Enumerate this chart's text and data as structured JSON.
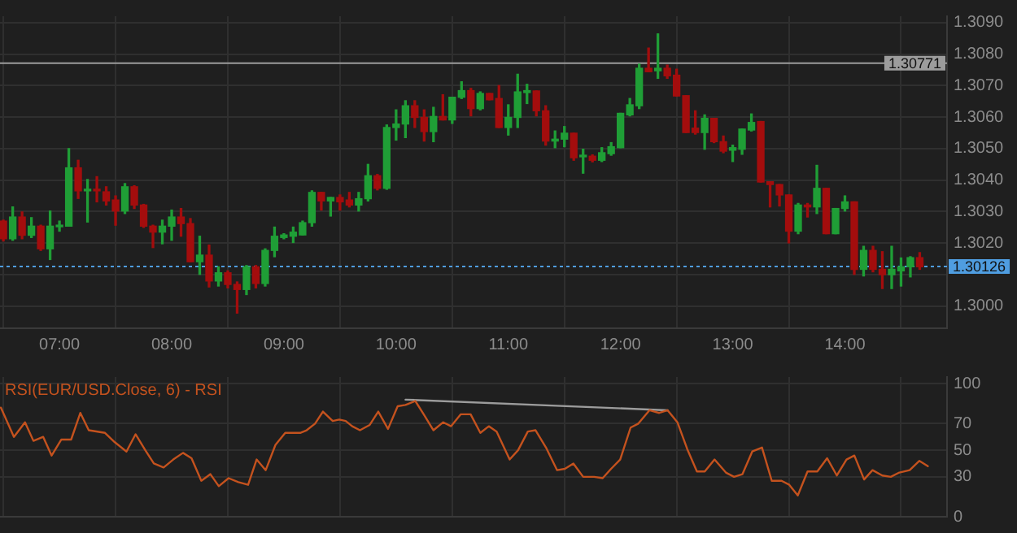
{
  "chart_data": [
    {
      "type": "candlestick",
      "colors": [
        "#a30d0d",
        "#1f9e36",
        "#a30d0d",
        "#1f9e36",
        "#a30d0d",
        "#1f9e36",
        "#1f9e36",
        "#1f9e36",
        "#a30d0d",
        "#1f9e36",
        "#a30d0d",
        "#a30d0d",
        "#a30d0d",
        "#1f9e36",
        "#a30d0d",
        "#a30d0d",
        "#a30d0d",
        "#1f9e36",
        "#1f9e36",
        "#a30d0d",
        "#a30d0d",
        "#1f9e36",
        "#a30d0d",
        "#1f9e36",
        "#a30d0d",
        "#a30d0d",
        "#1f9e36",
        "#a30d0d",
        "#1f9e36",
        "#1f9e36",
        "#1f9e36",
        "#1f9e36",
        "#1f9e36",
        "#1f9e36",
        "#a30d0d",
        "#1f9e36",
        "#a30d0d",
        "#a30d0d",
        "#1f9e36",
        "#1f9e36",
        "#a30d0d",
        "#1f9e36",
        "#1f9e36",
        "#1f9e36",
        "#a30d0d",
        "#a30d0d",
        "#1f9e36",
        "#a30d0d",
        "#1f9e36",
        "#1f9e36",
        "#a30d0d",
        "#1f9e36",
        "#a30d0d",
        "#a30d0d",
        "#1f9e36",
        "#1f9e36",
        "#1f9e36",
        "#a30d0d",
        "#a30d0d",
        "#1f9e36",
        "#1f9e36",
        "#a30d0d",
        "#1f9e36",
        "#a30d0d",
        "#1f9e36",
        "#1f9e36",
        "#1f9e36",
        "#1f9e36",
        "#1f9e36",
        "#a30d0d",
        "#1f9e36",
        "#a30d0d",
        "#a30d0d",
        "#a30d0d",
        "#a30d0d",
        "#1f9e36",
        "#a30d0d",
        "#a30d0d",
        "#1f9e36",
        "#1f9e36",
        "#1f9e36",
        "#a30d0d",
        "#a30d0d",
        "#a30d0d",
        "#a30d0d",
        "#1f9e36",
        "#a30d0d",
        "#1f9e36",
        "#a30d0d",
        "#1f9e36",
        "#1f9e36",
        "#a30d0d",
        "#1f9e36",
        "#a30d0d",
        "#a30d0d",
        "#1f9e36",
        "#1f9e36",
        "#1f9e36",
        "#a30d0d"
      ],
      "x": [
        6.5,
        6.5833,
        6.6667,
        6.75,
        6.8333,
        6.9167,
        7,
        7.0833,
        7.1667,
        7.25,
        7.3333,
        7.4167,
        7.5,
        7.5833,
        7.6667,
        7.75,
        7.8333,
        7.9167,
        8,
        8.0833,
        8.1667,
        8.25,
        8.3333,
        8.4167,
        8.5,
        8.5833,
        8.6667,
        8.75,
        8.8333,
        8.9167,
        9,
        9.0833,
        9.1667,
        9.25,
        9.3333,
        9.4167,
        9.5,
        9.5833,
        9.6667,
        9.75,
        9.8333,
        9.9167,
        10,
        10.0833,
        10.1667,
        10.25,
        10.3333,
        10.4167,
        10.5,
        10.5833,
        10.6667,
        10.75,
        10.8333,
        10.9167,
        11,
        11.0833,
        11.1667,
        11.25,
        11.3333,
        11.4167,
        11.5,
        11.5833,
        11.6667,
        11.75,
        11.8333,
        11.9167,
        12,
        12.0833,
        12.1667,
        12.25,
        12.3333,
        12.4167,
        12.5,
        12.5833,
        12.6667,
        12.75,
        12.8333,
        12.9167,
        13,
        13.0833,
        13.1667,
        13.25,
        13.3333,
        13.4167,
        13.5,
        13.5833,
        13.6667,
        13.75,
        13.8333,
        13.9167,
        14,
        14.0833,
        14.1667,
        14.25,
        14.3333,
        14.4167,
        14.5,
        14.5833,
        14.6667
      ],
      "ohlc": [
        [
          1.3027,
          1.30273,
          1.30207,
          1.30214
        ],
        [
          1.30214,
          1.30315,
          1.30209,
          1.30283
        ],
        [
          1.30283,
          1.30299,
          1.30214,
          1.30225
        ],
        [
          1.30225,
          1.30281,
          1.30218,
          1.30254
        ],
        [
          1.30254,
          1.30257,
          1.30177,
          1.30182
        ],
        [
          1.30182,
          1.30302,
          1.30148,
          1.30254
        ],
        [
          1.30252,
          1.3027,
          1.30238,
          1.30255
        ],
        [
          1.30254,
          1.305,
          1.30254,
          1.30439
        ],
        [
          1.30439,
          1.30463,
          1.30342,
          1.30366
        ],
        [
          1.30366,
          1.30402,
          1.30267,
          1.30369
        ],
        [
          1.30369,
          1.30411,
          1.30331,
          1.30366
        ],
        [
          1.30363,
          1.30379,
          1.30321,
          1.30334
        ],
        [
          1.30337,
          1.3035,
          1.30257,
          1.30302
        ],
        [
          1.30302,
          1.30389,
          1.30294,
          1.30379
        ],
        [
          1.30379,
          1.30382,
          1.3031,
          1.30321
        ],
        [
          1.30321,
          1.30323,
          1.3025,
          1.30254
        ],
        [
          1.30254,
          1.30257,
          1.30186,
          1.30235
        ],
        [
          1.30235,
          1.30273,
          1.30198,
          1.30254
        ],
        [
          1.30254,
          1.30305,
          1.30209,
          1.30283
        ],
        [
          1.30283,
          1.3031,
          1.30222,
          1.30262
        ],
        [
          1.30262,
          1.30278,
          1.30141,
          1.30141
        ],
        [
          1.30141,
          1.30222,
          1.30101,
          1.30162
        ],
        [
          1.30162,
          1.30194,
          1.30061,
          1.3008
        ],
        [
          1.3008,
          1.30125,
          1.30064,
          1.30106
        ],
        [
          1.30106,
          1.30112,
          1.30058,
          1.30069
        ],
        [
          1.30069,
          1.30077,
          1.29978,
          1.30053
        ],
        [
          1.30053,
          1.30129,
          1.30037,
          1.30125
        ],
        [
          1.30125,
          1.30129,
          1.30058,
          1.30072
        ],
        [
          1.30072,
          1.30182,
          1.30064,
          1.30177
        ],
        [
          1.30177,
          1.30251,
          1.30157,
          1.30222
        ],
        [
          1.30218,
          1.3023,
          1.30214,
          1.30226
        ],
        [
          1.30222,
          1.30251,
          1.30202,
          1.30235
        ],
        [
          1.30226,
          1.3027,
          1.30226,
          1.30265
        ],
        [
          1.30265,
          1.30366,
          1.30254,
          1.30361
        ],
        [
          1.30361,
          1.30361,
          1.30305,
          1.30334
        ],
        [
          1.30334,
          1.30345,
          1.30286,
          1.30345
        ],
        [
          1.30345,
          1.30353,
          1.30305,
          1.30331
        ],
        [
          1.30337,
          1.30361,
          1.30315,
          1.30321
        ],
        [
          1.30321,
          1.30361,
          1.30302,
          1.30341
        ],
        [
          1.30341,
          1.3045,
          1.30334,
          1.30414
        ],
        [
          1.30414,
          1.30418,
          1.30369,
          1.30374
        ],
        [
          1.30374,
          1.30575,
          1.30371,
          1.30567
        ],
        [
          1.30567,
          1.30623,
          1.30527,
          1.30578
        ],
        [
          1.30578,
          1.30652,
          1.30535,
          1.30636
        ],
        [
          1.30636,
          1.30652,
          1.30567,
          1.30599
        ],
        [
          1.30599,
          1.30623,
          1.30524,
          1.30554
        ],
        [
          1.30554,
          1.30631,
          1.30522,
          1.30602
        ],
        [
          1.30602,
          1.30671,
          1.30591,
          1.30591
        ],
        [
          1.30591,
          1.30663,
          1.3058,
          1.30663
        ],
        [
          1.30663,
          1.30712,
          1.30659,
          1.30684
        ],
        [
          1.30684,
          1.30691,
          1.30604,
          1.30627
        ],
        [
          1.30627,
          1.3068,
          1.30623,
          1.30675
        ],
        [
          1.30675,
          1.30675,
          1.30655,
          1.30655
        ],
        [
          1.30659,
          1.307,
          1.30567,
          1.30567
        ],
        [
          1.30567,
          1.30639,
          1.30543,
          1.30599
        ],
        [
          1.30599,
          1.30736,
          1.30567,
          1.3068
        ],
        [
          1.30678,
          1.30704,
          1.30643,
          1.30684
        ],
        [
          1.30683,
          1.30683,
          1.30604,
          1.3062
        ],
        [
          1.3062,
          1.30636,
          1.30511,
          1.30524
        ],
        [
          1.30524,
          1.30556,
          1.30503,
          1.3053
        ],
        [
          1.3053,
          1.3057,
          1.30506,
          1.30549
        ],
        [
          1.30549,
          1.30549,
          1.30463,
          1.30471
        ],
        [
          1.30474,
          1.30498,
          1.30422,
          1.30476
        ],
        [
          1.30476,
          1.3048,
          1.30458,
          1.30463
        ],
        [
          1.30463,
          1.30503,
          1.30459,
          1.30487
        ],
        [
          1.30484,
          1.30519,
          1.30479,
          1.30506
        ],
        [
          1.30503,
          1.30612,
          1.30503,
          1.30612
        ],
        [
          1.30607,
          1.30659,
          1.30604,
          1.30639
        ],
        [
          1.30636,
          1.30768,
          1.30627,
          1.30755
        ],
        [
          1.30755,
          1.30819,
          1.30744,
          1.30744
        ],
        [
          1.30747,
          1.30864,
          1.30723,
          1.30755
        ],
        [
          1.30755,
          1.30765,
          1.30723,
          1.30731
        ],
        [
          1.30733,
          1.30752,
          1.30667,
          1.30667
        ],
        [
          1.30668,
          1.30668,
          1.30551,
          1.30551
        ],
        [
          1.30565,
          1.3062,
          1.30546,
          1.30551
        ],
        [
          1.30551,
          1.30607,
          1.30498,
          1.30596
        ],
        [
          1.30596,
          1.30596,
          1.30519,
          1.30522
        ],
        [
          1.30522,
          1.3054,
          1.30487,
          1.30492
        ],
        [
          1.30495,
          1.30511,
          1.30459,
          1.30503
        ],
        [
          1.30498,
          1.30562,
          1.30482,
          1.30562
        ],
        [
          1.30559,
          1.3061,
          1.30556,
          1.30583
        ],
        [
          1.30586,
          1.30586,
          1.30394,
          1.30394
        ],
        [
          1.30395,
          1.30395,
          1.30315,
          1.30386
        ],
        [
          1.30386,
          1.30386,
          1.30318,
          1.30353
        ],
        [
          1.30353,
          1.30353,
          1.30201,
          1.30238
        ],
        [
          1.30238,
          1.30326,
          1.3023,
          1.30321
        ],
        [
          1.30321,
          1.30326,
          1.30283,
          1.30315
        ],
        [
          1.30315,
          1.30447,
          1.30294,
          1.30374
        ],
        [
          1.30374,
          1.30374,
          1.3023,
          1.3023
        ],
        [
          1.3023,
          1.3031,
          1.3023,
          1.3031
        ],
        [
          1.3031,
          1.3035,
          1.30302,
          1.30331
        ],
        [
          1.30331,
          1.30331,
          1.30101,
          1.30117
        ],
        [
          1.30117,
          1.3019,
          1.30096,
          1.30177
        ],
        [
          1.30177,
          1.3019,
          1.30109,
          1.30117
        ],
        [
          1.30117,
          1.30173,
          1.30056,
          1.301
        ],
        [
          1.301,
          1.3019,
          1.30056,
          1.30117
        ],
        [
          1.30112,
          1.30153,
          1.30064,
          1.30125
        ],
        [
          1.30125,
          1.30157,
          1.30093,
          1.30154
        ],
        [
          1.30154,
          1.3017,
          1.30117,
          1.30125
        ]
      ],
      "xlim": [
        6.47,
        14.91
      ],
      "xticks": [
        {
          "value": 7,
          "label": "07:00"
        },
        {
          "value": 8,
          "label": "08:00"
        },
        {
          "value": 9,
          "label": "09:00"
        },
        {
          "value": 10,
          "label": "10:00"
        },
        {
          "value": 11,
          "label": "11:00"
        },
        {
          "value": 12,
          "label": "12:00"
        },
        {
          "value": 13,
          "label": "13:00"
        },
        {
          "value": 14,
          "label": "14:00"
        }
      ],
      "ylim": [
        1.2993,
        1.3092
      ],
      "yticks": [
        {
          "value": 1.3,
          "label": "1.3000"
        },
        {
          "value": 1.301,
          "label": null
        },
        {
          "value": 1.302,
          "label": "1.3020"
        },
        {
          "value": 1.303,
          "label": "1.3030"
        },
        {
          "value": 1.304,
          "label": "1.3040"
        },
        {
          "value": 1.305,
          "label": "1.3050"
        },
        {
          "value": 1.306,
          "label": "1.3060"
        },
        {
          "value": 1.307,
          "label": "1.3070"
        },
        {
          "value": 1.308,
          "label": "1.3080"
        },
        {
          "value": 1.309,
          "label": "1.3090"
        }
      ],
      "ref_lines": [
        {
          "axis": "y",
          "value": 1.30771,
          "label": "1.30771",
          "color": "#9c9c9c"
        },
        {
          "axis": "y",
          "value": 1.30126,
          "label": "1.30126",
          "color": "#4f9de0",
          "line_style": "dotted"
        }
      ],
      "grid": true
    },
    {
      "type": "line",
      "title": "RSI(EUR/USD.Close, 6) - RSI",
      "series": [
        {
          "color": "#c4521e",
          "x": [
            6.478,
            6.594,
            6.693,
            6.768,
            6.855,
            6.93,
            7.017,
            7.104,
            7.186,
            7.261,
            7.406,
            7.493,
            7.597,
            7.678,
            7.765,
            7.841,
            7.928,
            8.014,
            8.101,
            8.177,
            8.264,
            8.345,
            8.42,
            8.507,
            8.594,
            8.681,
            8.757,
            8.838,
            8.925,
            9.012,
            9.145,
            9.203,
            9.278,
            9.348,
            9.435,
            9.493,
            9.551,
            9.609,
            9.678,
            9.765,
            9.841,
            9.928,
            10.014,
            10.084,
            10.171,
            10.246,
            10.333,
            10.42,
            10.49,
            10.577,
            10.664,
            10.751,
            10.826,
            10.896,
            11.012,
            11.087,
            11.174,
            11.243,
            11.336,
            11.435,
            11.504,
            11.58,
            11.667,
            11.765,
            11.841,
            11.916,
            11.997,
            12.09,
            12.159,
            12.258,
            12.345,
            12.42,
            12.507,
            12.594,
            12.681,
            12.751,
            12.838,
            12.942,
            13.012,
            13.087,
            13.174,
            13.261,
            13.348,
            13.435,
            13.504,
            13.58,
            13.667,
            13.754,
            13.841,
            13.928,
            14.014,
            14.084,
            14.171,
            14.246,
            14.333,
            14.409,
            14.478,
            14.577,
            14.664,
            14.739
          ],
          "values": [
            82,
            60,
            71,
            57,
            60,
            46,
            58,
            58,
            78,
            65,
            63,
            56,
            49,
            62,
            50,
            40,
            37,
            43,
            48,
            44,
            27,
            32,
            23,
            29,
            26,
            24,
            43,
            35,
            54,
            63,
            63,
            65,
            70,
            79,
            72,
            73,
            72,
            68,
            65,
            69,
            79,
            66,
            83,
            84,
            87,
            77,
            65,
            71,
            68,
            77,
            77,
            63,
            68,
            64,
            43,
            50,
            64,
            65,
            52,
            35,
            36,
            40,
            30,
            30,
            29,
            36,
            43,
            67,
            70,
            80,
            78,
            80,
            71,
            51,
            34,
            34,
            43,
            33,
            30,
            32,
            49,
            52,
            27,
            27,
            24,
            16,
            34,
            34,
            44,
            31,
            43,
            46,
            28,
            35,
            31,
            30,
            33,
            35,
            42,
            38
          ]
        },
        {
          "color": "#9c9c9c",
          "x": [
            10.084,
            12.42
          ],
          "values": [
            88,
            80
          ]
        }
      ],
      "xlim": [
        6.47,
        14.91
      ],
      "xticks": [
        {
          "value": 7,
          "label": null
        },
        {
          "value": 8,
          "label": null
        },
        {
          "value": 9,
          "label": null
        },
        {
          "value": 10,
          "label": null
        },
        {
          "value": 11,
          "label": null
        },
        {
          "value": 12,
          "label": null
        },
        {
          "value": 13,
          "label": null
        },
        {
          "value": 14,
          "label": null
        }
      ],
      "ylim": [
        0,
        105
      ],
      "yticks": [
        0,
        30,
        50,
        70,
        100
      ],
      "tick_labels": "y",
      "grid": true
    }
  ]
}
